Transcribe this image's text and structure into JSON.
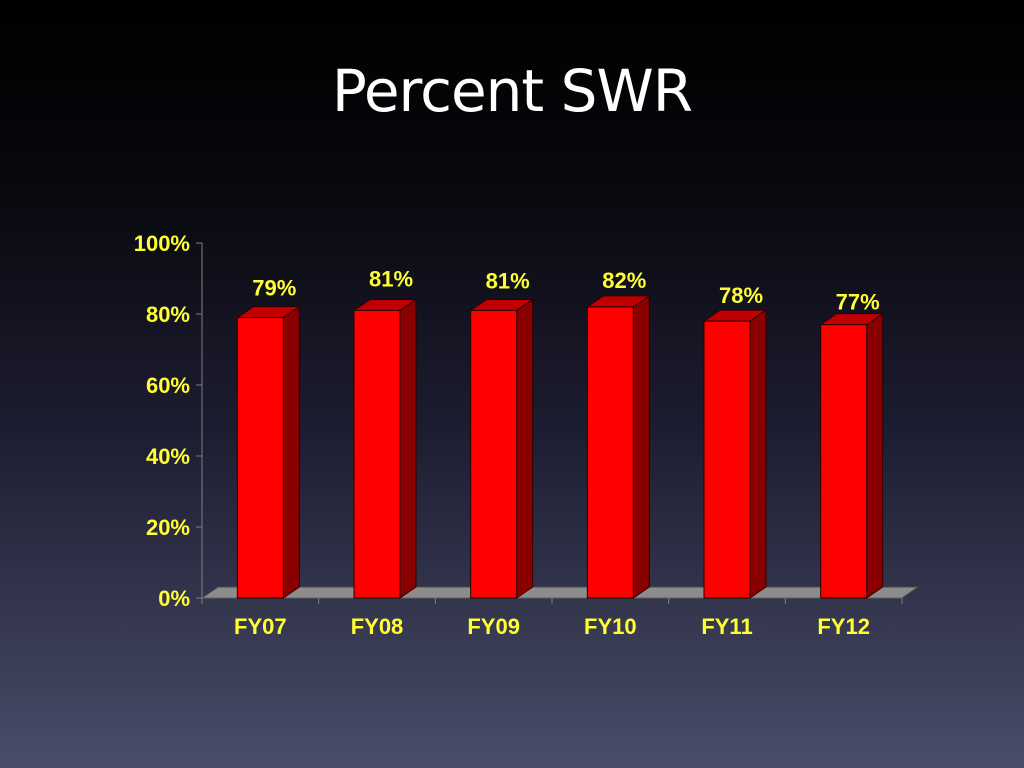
{
  "slide": {
    "title": "Percent SWR"
  },
  "chart_data": {
    "type": "bar",
    "title": "",
    "xlabel": "",
    "ylabel": "",
    "categories": [
      "FY07",
      "FY08",
      "FY09",
      "FY10",
      "FY11",
      "FY12"
    ],
    "values": [
      79,
      81,
      81,
      82,
      78,
      77
    ],
    "data_labels": [
      "79%",
      "81%",
      "81%",
      "82%",
      "78%",
      "77%"
    ],
    "ylim": [
      0,
      100
    ],
    "y_ticks": [
      0,
      20,
      40,
      60,
      80,
      100
    ],
    "y_tick_labels": [
      "0%",
      "20%",
      "40%",
      "60%",
      "80%",
      "100%"
    ],
    "grid": false,
    "legend": "none",
    "style": "3d-column",
    "colors": {
      "bar_front": "#ff0000",
      "bar_side": "#8a0000",
      "bar_top": "#c00000",
      "floor": "#8c8c8c",
      "labels": "#ffff33",
      "axis": "#808080"
    }
  }
}
